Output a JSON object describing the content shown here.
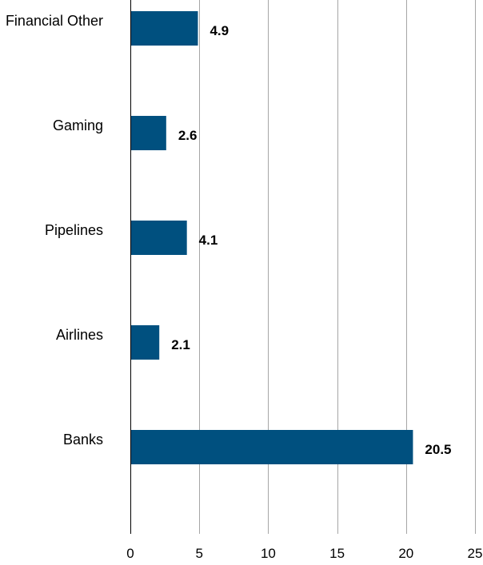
{
  "chart_data": {
    "type": "bar",
    "orientation": "horizontal",
    "categories": [
      "Financial Other",
      "Gaming",
      "Pipelines",
      "Airlines",
      "Banks"
    ],
    "values": [
      4.9,
      2.6,
      4.1,
      2.1,
      20.5
    ],
    "data_labels": [
      "4.9",
      "2.6",
      "4.1",
      "2.1",
      "20.5"
    ],
    "x_ticks": [
      0,
      5,
      10,
      15,
      20,
      25
    ],
    "xlim": [
      0,
      25
    ],
    "title": "",
    "xlabel": "",
    "ylabel": "",
    "grid": "vertical",
    "legend": "none",
    "bar_color": "#00507F",
    "grid_color": "#A6A6A6",
    "axis_color": "#000000"
  }
}
